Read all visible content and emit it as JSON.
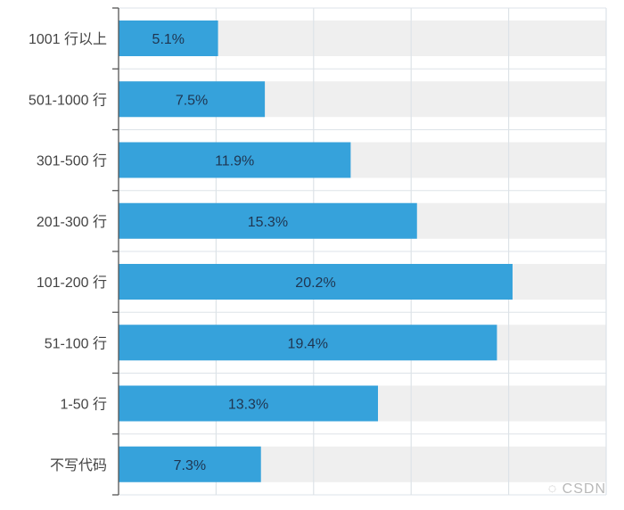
{
  "chart_data": {
    "type": "bar",
    "orientation": "horizontal",
    "categories": [
      "1001 行以上",
      "501-1000 行",
      "301-500 行",
      "201-300 行",
      "101-200 行",
      "51-100 行",
      "1-50 行",
      "不写代码"
    ],
    "values": [
      5.1,
      7.5,
      11.9,
      15.3,
      20.2,
      19.4,
      13.3,
      7.3
    ],
    "data_labels": [
      "5.1%",
      "7.5%",
      "11.9%",
      "15.3%",
      "20.2%",
      "19.4%",
      "13.3%",
      "7.3%"
    ],
    "xlim": [
      0,
      25
    ],
    "x_grid_step": 5,
    "grid": true,
    "title": "",
    "xlabel": "",
    "ylabel": "",
    "colors": {
      "bar": "#36a2db",
      "track": "#efefef",
      "grid": "#dde3e8",
      "axis": "#555555"
    }
  },
  "watermark": {
    "text": "CSDN",
    "icon": "wechat-icon"
  }
}
